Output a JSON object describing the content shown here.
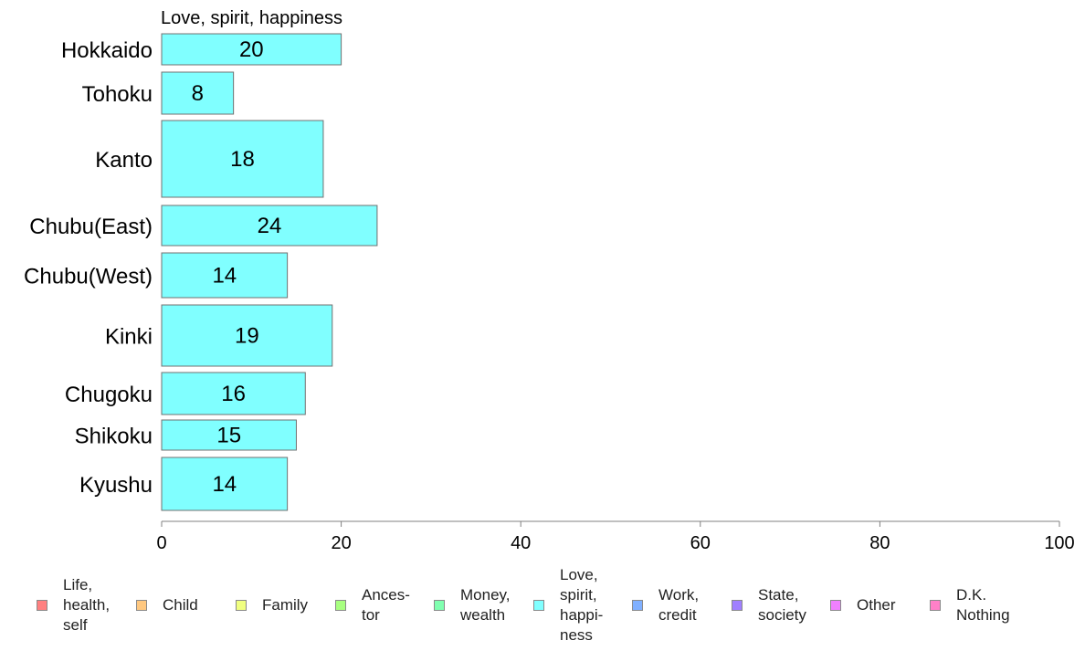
{
  "chart_data": {
    "type": "bar",
    "orientation": "horizontal",
    "title": "Love, spirit, happiness",
    "categories": [
      "Hokkaido",
      "Tohoku",
      "Kanto",
      "Chubu(East)",
      "Chubu(West)",
      "Kinki",
      "Chugoku",
      "Shikoku",
      "Kyushu"
    ],
    "values": [
      20,
      8,
      18,
      24,
      14,
      19,
      16,
      15,
      14
    ],
    "xlim": [
      0,
      100
    ],
    "xticks": [
      0,
      20,
      40,
      60,
      80,
      100
    ],
    "bar_color": "#80ffff",
    "grid": false,
    "legend_position": "bottom"
  },
  "legend": [
    {
      "label": "Life,\nhealth,\nself",
      "color": "#ff8080"
    },
    {
      "label": "Child",
      "color": "#ffc880"
    },
    {
      "label": "Family",
      "color": "#f0ff80"
    },
    {
      "label": "Ances-\ntor",
      "color": "#a8ff80"
    },
    {
      "label": "Money,\nwealth",
      "color": "#80ffb0"
    },
    {
      "label": "Love,\nspirit,\nhappi-\nness",
      "color": "#80ffff"
    },
    {
      "label": "Work,\ncredit",
      "color": "#80b0ff"
    },
    {
      "label": "State,\nsociety",
      "color": "#a080ff"
    },
    {
      "label": "Other",
      "color": "#f080ff"
    },
    {
      "label": "D.K.\nNothing",
      "color": "#ff80c8"
    }
  ]
}
